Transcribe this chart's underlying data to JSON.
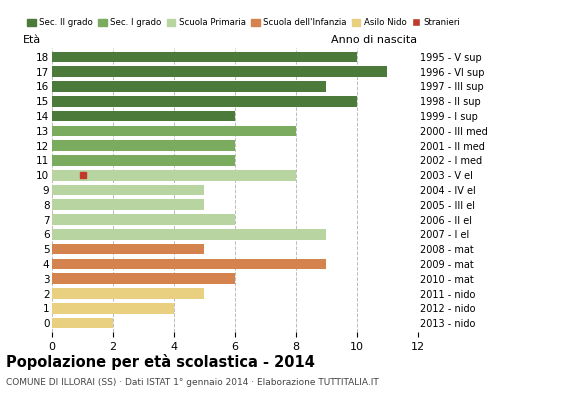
{
  "title": "Popolazione per età scolastica - 2014",
  "subtitle": "COMUNE DI ILLORAI (SS) · Dati ISTAT 1° gennaio 2014 · Elaborazione TUTTITALIA.IT",
  "ages": [
    0,
    1,
    2,
    3,
    4,
    5,
    6,
    7,
    8,
    9,
    10,
    11,
    12,
    13,
    14,
    15,
    16,
    17,
    18
  ],
  "anno_nascita": [
    "2013 - nido",
    "2012 - nido",
    "2011 - nido",
    "2010 - mat",
    "2009 - mat",
    "2008 - mat",
    "2007 - I el",
    "2006 - II el",
    "2005 - III el",
    "2004 - IV el",
    "2003 - V el",
    "2002 - I med",
    "2001 - II med",
    "2000 - III med",
    "1999 - I sup",
    "1998 - II sup",
    "1997 - III sup",
    "1996 - VI sup",
    "1995 - V sup"
  ],
  "values": [
    2,
    4,
    5,
    6,
    9,
    5,
    9,
    6,
    5,
    5,
    8,
    6,
    6,
    8,
    6,
    10,
    9,
    11,
    10
  ],
  "stranieri": [
    0,
    0,
    0,
    0,
    0,
    0,
    0,
    0,
    0,
    0,
    1,
    0,
    0,
    0,
    0,
    0,
    0,
    0,
    0
  ],
  "categories": {
    "Sec. II grado": {
      "ages": [
        14,
        15,
        16,
        17,
        18
      ],
      "color": "#4c7a3b"
    },
    "Sec. I grado": {
      "ages": [
        11,
        12,
        13
      ],
      "color": "#7aab5e"
    },
    "Scuola Primaria": {
      "ages": [
        6,
        7,
        8,
        9,
        10
      ],
      "color": "#b8d4a0"
    },
    "Scuola dell'Infanzia": {
      "ages": [
        3,
        4,
        5
      ],
      "color": "#d4824e"
    },
    "Asilo Nido": {
      "ages": [
        0,
        1,
        2
      ],
      "color": "#e8d080"
    }
  },
  "stranieri_color": "#c0392b",
  "background_color": "#ffffff",
  "grid_color": "#bbbbbb",
  "xlim": [
    0,
    12
  ],
  "bar_height": 0.72,
  "legend_labels": [
    "Sec. II grado",
    "Sec. I grado",
    "Scuola Primaria",
    "Scuola dell'Infanzia",
    "Asilo Nido",
    "Stranieri"
  ],
  "legend_colors": [
    "#4c7a3b",
    "#7aab5e",
    "#b8d4a0",
    "#d4824e",
    "#e8d080",
    "#c0392b"
  ]
}
